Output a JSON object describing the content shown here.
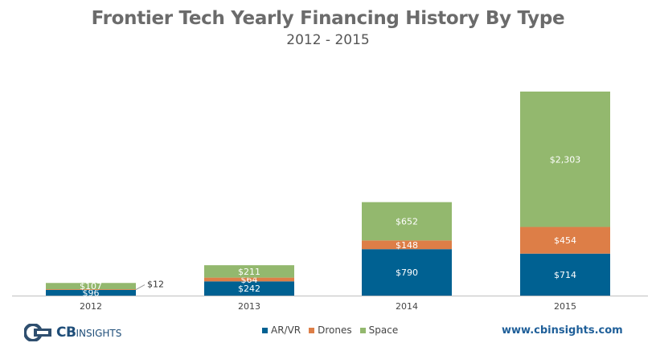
{
  "chart_data": {
    "type": "bar",
    "stacked": true,
    "title": "Frontier Tech Yearly Financing History By Type",
    "subtitle": "2012 - 2015",
    "categories": [
      "2012",
      "2013",
      "2014",
      "2015"
    ],
    "series": [
      {
        "name": "AR/VR",
        "color": "#006192",
        "values": [
          96,
          242,
          790,
          714
        ],
        "labels": [
          "$96",
          "$242",
          "$790",
          "$714"
        ]
      },
      {
        "name": "Drones",
        "color": "#dd7e47",
        "values": [
          12,
          64,
          148,
          454
        ],
        "labels": [
          "$12",
          "$64",
          "$148",
          "$454"
        ]
      },
      {
        "name": "Space",
        "color": "#93b86e",
        "values": [
          107,
          211,
          652,
          2303
        ],
        "labels": [
          "$107",
          "$211",
          "$652",
          "$2,303"
        ]
      }
    ],
    "xlabel": "",
    "ylabel": "",
    "ylim": [
      0,
      3500
    ],
    "legend_position": "bottom"
  },
  "footer": {
    "logo_text_bold": "CB",
    "logo_text": "INSIGHTS",
    "website": "www.cbinsights.com"
  }
}
